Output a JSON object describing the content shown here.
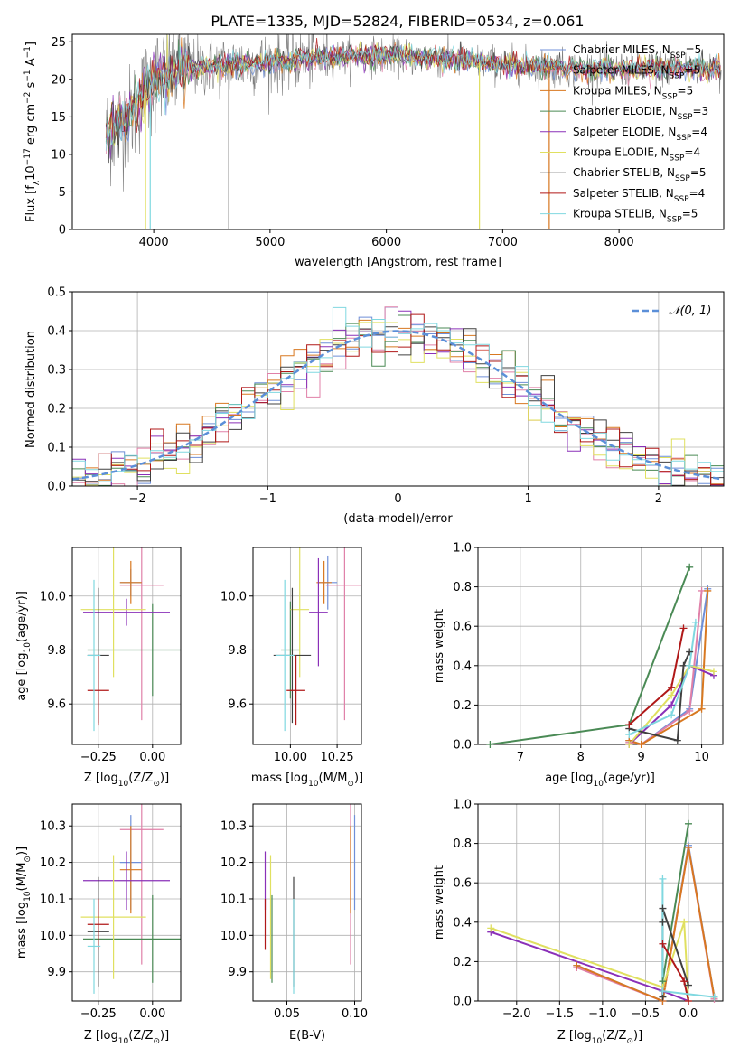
{
  "figure_title": "PLATE=1335, MJD=52824, FIBERID=0534, z=0.061",
  "colors": {
    "Chabrier MILES": "#6f8fd8",
    "Salpeter MILES": "#e080a8",
    "Kroupa MILES": "#d87820",
    "Chabrier ELODIE": "#4a8a55",
    "Salpeter ELODIE": "#8a30b8",
    "Kroupa ELODIE": "#e0e060",
    "Chabrier STELIB": "#404040",
    "Salpeter STELIB": "#b01818",
    "Kroupa STELIB": "#80d8e0",
    "normal_curve": "#5b8fd8",
    "grid": "#b0b0b0",
    "spectrum_gray": "#808080"
  },
  "chart_data": [
    {
      "id": "spectrum",
      "type": "line",
      "title": "PLATE=1335, MJD=52824, FIBERID=0534, z=0.061",
      "xlabel": "wavelength [Angstrom, rest frame]",
      "ylabel_parts": [
        "Flux [f",
        "λ",
        "10",
        "−17",
        " erg cm",
        "−2",
        " s",
        "−1",
        " A",
        "−1",
        "]"
      ],
      "xlim": [
        3300,
        8900
      ],
      "ylim": [
        0,
        26
      ],
      "xticks": [
        4000,
        5000,
        6000,
        7000,
        8000
      ],
      "yticks": [
        0,
        5,
        10,
        15,
        20,
        25
      ],
      "legend_position": "upper right",
      "series": [
        {
          "name": "Chabrier MILES",
          "label_parts": [
            "Chabrier MILES, N",
            "SSP",
            "=5"
          ]
        },
        {
          "name": "Salpeter MILES",
          "label_parts": [
            "Salpeter MILES, N",
            "SSP",
            "=5"
          ]
        },
        {
          "name": "Kroupa MILES",
          "label_parts": [
            "Kroupa MILES, N",
            "SSP",
            "=5"
          ]
        },
        {
          "name": "Chabrier ELODIE",
          "label_parts": [
            "Chabrier ELODIE, N",
            "SSP",
            "=3"
          ]
        },
        {
          "name": "Salpeter ELODIE",
          "label_parts": [
            "Salpeter ELODIE, N",
            "SSP",
            "=4"
          ]
        },
        {
          "name": "Kroupa ELODIE",
          "label_parts": [
            "Kroupa ELODIE, N",
            "SSP",
            "=4"
          ]
        },
        {
          "name": "Chabrier STELIB",
          "label_parts": [
            "Chabrier STELIB, N",
            "SSP",
            "=5"
          ]
        },
        {
          "name": "Salpeter STELIB",
          "label_parts": [
            "Salpeter STELIB, N",
            "SSP",
            "=4"
          ]
        },
        {
          "name": "Kroupa STELIB",
          "label_parts": [
            "Kroupa STELIB, N",
            "SSP",
            "=5"
          ]
        }
      ],
      "continuum_x": [
        3590,
        3800,
        4000,
        4200,
        4500,
        5000,
        5500,
        6000,
        6500,
        7000,
        7500,
        8000,
        8500,
        8900
      ],
      "continuum_y": [
        12.5,
        15.0,
        20.0,
        21.3,
        21.8,
        22.3,
        23.0,
        23.2,
        22.7,
        22.0,
        21.5,
        21.3,
        21.5,
        21.5
      ],
      "spikes": [
        {
          "x": 3930,
          "y": 0
        },
        {
          "x": 3970,
          "y": 0
        },
        {
          "x": 4645,
          "y": 0
        },
        {
          "x": 6800,
          "y": 0
        },
        {
          "x": 7400,
          "y": 0
        }
      ]
    },
    {
      "id": "residuals",
      "type": "step",
      "xlabel": "(data-model)/error",
      "ylabel": "Normed distribution",
      "xlim": [
        -2.5,
        2.5
      ],
      "ylim": [
        0,
        0.5
      ],
      "xticks": [
        -2,
        -1,
        0,
        1,
        2
      ],
      "yticks": [
        0.0,
        0.1,
        0.2,
        0.3,
        0.4,
        0.5
      ],
      "bin_width": 0.1,
      "legend_position": "upper right",
      "curve_legend": "𝒩(0, 1)",
      "curve": "normal(0,1)"
    },
    {
      "id": "age_vs_Z",
      "type": "errorbar",
      "xlabel_parts": [
        "Z [log",
        "10",
        "(Z/Z",
        "⊙",
        ")]"
      ],
      "ylabel_parts": [
        "age  [log",
        "10",
        "(age/yr)]"
      ],
      "xlim": [
        -0.37,
        0.13
      ],
      "ylim": [
        9.45,
        10.18
      ],
      "xticks": [
        -0.25,
        0.0
      ],
      "yticks": [
        9.6,
        9.8,
        10.0
      ],
      "points": [
        {
          "name": "Chabrier MILES",
          "x": -0.1,
          "y": 10.05,
          "xerr": 0.05,
          "yerr": 0.05
        },
        {
          "name": "Salpeter MILES",
          "x": -0.05,
          "y": 10.04,
          "xerr": 0.1,
          "yerr": 0.5
        },
        {
          "name": "Kroupa MILES",
          "x": -0.1,
          "y": 10.05,
          "xerr": 0.05,
          "yerr": 0.08
        },
        {
          "name": "Chabrier ELODIE",
          "x": 0.0,
          "y": 9.8,
          "xerr": 0.3,
          "yerr": 0.17
        },
        {
          "name": "Salpeter ELODIE",
          "x": -0.12,
          "y": 9.94,
          "xerr": 0.2,
          "yerr": 0.05
        },
        {
          "name": "Kroupa ELODIE",
          "x": -0.18,
          "y": 9.95,
          "xerr": 0.15,
          "yerr": 0.25
        },
        {
          "name": "Chabrier STELIB",
          "x": -0.25,
          "y": 9.78,
          "xerr": 0.05,
          "yerr": 0.25
        },
        {
          "name": "Salpeter STELIB",
          "x": -0.25,
          "y": 9.65,
          "xerr": 0.05,
          "yerr": 0.13
        },
        {
          "name": "Kroupa STELIB",
          "x": -0.27,
          "y": 9.78,
          "xerr": 0.03,
          "yerr": 0.28
        }
      ]
    },
    {
      "id": "age_vs_mass",
      "type": "errorbar",
      "xlabel_parts": [
        "mass [log",
        "10",
        "(M/M",
        "⊙",
        ")]"
      ],
      "xlim": [
        9.8,
        10.38
      ],
      "ylim": [
        9.45,
        10.18
      ],
      "xticks": [
        10.0,
        10.25
      ],
      "yticks": [
        9.6,
        9.8,
        10.0
      ],
      "points": [
        {
          "name": "Chabrier MILES",
          "x": 10.2,
          "y": 10.05,
          "xerr": 0.05,
          "yerr": 0.1
        },
        {
          "name": "Salpeter MILES",
          "x": 10.29,
          "y": 10.04,
          "xerr": 0.1,
          "yerr": 0.5
        },
        {
          "name": "Kroupa MILES",
          "x": 10.18,
          "y": 10.05,
          "xerr": 0.04,
          "yerr": 0.08
        },
        {
          "name": "Chabrier ELODIE",
          "x": 10.0,
          "y": 9.8,
          "xerr": 0.05,
          "yerr": 0.18
        },
        {
          "name": "Salpeter ELODIE",
          "x": 10.15,
          "y": 9.94,
          "xerr": 0.05,
          "yerr": 0.2
        },
        {
          "name": "Kroupa ELODIE",
          "x": 10.05,
          "y": 9.95,
          "xerr": 0.05,
          "yerr": 0.25
        },
        {
          "name": "Chabrier STELIB",
          "x": 10.01,
          "y": 9.78,
          "xerr": 0.1,
          "yerr": 0.25
        },
        {
          "name": "Salpeter STELIB",
          "x": 10.03,
          "y": 9.65,
          "xerr": 0.05,
          "yerr": 0.13
        },
        {
          "name": "Kroupa STELIB",
          "x": 9.97,
          "y": 9.78,
          "xerr": 0.05,
          "yerr": 0.28
        }
      ]
    },
    {
      "id": "massweight_vs_age",
      "type": "line",
      "xlabel_parts": [
        "age  [log",
        "10",
        "(age/yr)]"
      ],
      "ylabel": "mass weight",
      "xlim": [
        6.3,
        10.35
      ],
      "ylim": [
        0,
        1.0
      ],
      "xticks": [
        7,
        8,
        9,
        10
      ],
      "yticks": [
        0.0,
        0.2,
        0.4,
        0.6,
        0.8,
        1.0
      ],
      "series": [
        {
          "name": "Chabrier MILES",
          "x": [
            8.8,
            9.0,
            9.8,
            10.1
          ],
          "y": [
            0.02,
            0.0,
            0.18,
            0.79
          ]
        },
        {
          "name": "Salpeter MILES",
          "x": [
            8.8,
            9.0,
            9.8,
            10.0
          ],
          "y": [
            0.01,
            0.0,
            0.17,
            0.78
          ]
        },
        {
          "name": "Kroupa MILES",
          "x": [
            8.8,
            9.0,
            10.0,
            10.1
          ],
          "y": [
            0.02,
            0.0,
            0.18,
            0.78
          ]
        },
        {
          "name": "Chabrier ELODIE",
          "x": [
            6.5,
            8.8,
            9.8
          ],
          "y": [
            0.0,
            0.1,
            0.9
          ]
        },
        {
          "name": "Salpeter ELODIE",
          "x": [
            8.8,
            9.5,
            9.8,
            10.2
          ],
          "y": [
            0.0,
            0.2,
            0.4,
            0.35
          ]
        },
        {
          "name": "Kroupa ELODIE",
          "x": [
            8.8,
            9.5,
            9.8,
            10.2
          ],
          "y": [
            0.0,
            0.25,
            0.4,
            0.37
          ]
        },
        {
          "name": "Chabrier STELIB",
          "x": [
            8.8,
            9.6,
            9.7,
            9.8
          ],
          "y": [
            0.08,
            0.02,
            0.4,
            0.47
          ]
        },
        {
          "name": "Salpeter STELIB",
          "x": [
            8.8,
            9.5,
            9.7
          ],
          "y": [
            0.1,
            0.29,
            0.59
          ]
        },
        {
          "name": "Kroupa STELIB",
          "x": [
            8.8,
            9.5,
            9.8,
            9.9
          ],
          "y": [
            0.05,
            0.15,
            0.4,
            0.62
          ]
        }
      ]
    },
    {
      "id": "mass_vs_Z",
      "type": "errorbar",
      "xlabel_parts": [
        "Z [log",
        "10",
        "(Z/Z",
        "⊙",
        ")]"
      ],
      "ylabel_parts": [
        "mass [log",
        "10",
        "(M/M",
        "⊙",
        ")]"
      ],
      "xlim": [
        -0.37,
        0.13
      ],
      "ylim": [
        9.82,
        10.36
      ],
      "xticks": [
        -0.25,
        0.0
      ],
      "yticks": [
        9.9,
        10.0,
        10.1,
        10.2,
        10.3
      ],
      "points": [
        {
          "name": "Chabrier MILES",
          "x": -0.1,
          "y": 10.2,
          "xerr": 0.05,
          "yerr": 0.13
        },
        {
          "name": "Salpeter MILES",
          "x": -0.05,
          "y": 10.29,
          "xerr": 0.1,
          "yerr": 0.37
        },
        {
          "name": "Kroupa MILES",
          "x": -0.1,
          "y": 10.18,
          "xerr": 0.05,
          "yerr": 0.12
        },
        {
          "name": "Chabrier ELODIE",
          "x": 0.0,
          "y": 9.99,
          "xerr": 0.32,
          "yerr": 0.12
        },
        {
          "name": "Salpeter ELODIE",
          "x": -0.12,
          "y": 10.15,
          "xerr": 0.2,
          "yerr": 0.08
        },
        {
          "name": "Kroupa ELODIE",
          "x": -0.18,
          "y": 10.05,
          "xerr": 0.15,
          "yerr": 0.17
        },
        {
          "name": "Chabrier STELIB",
          "x": -0.25,
          "y": 10.01,
          "xerr": 0.05,
          "yerr": 0.15
        },
        {
          "name": "Salpeter STELIB",
          "x": -0.25,
          "y": 10.03,
          "xerr": 0.05,
          "yerr": 0.07
        },
        {
          "name": "Kroupa STELIB",
          "x": -0.27,
          "y": 9.97,
          "xerr": 0.03,
          "yerr": 0.13
        }
      ]
    },
    {
      "id": "mass_vs_ebv",
      "type": "errorbar",
      "xlabel": "E(B-V)",
      "xlim": [
        0.025,
        0.105
      ],
      "ylim": [
        9.82,
        10.36
      ],
      "xticks": [
        0.05,
        0.1
      ],
      "yticks": [
        9.9,
        10.0,
        10.1,
        10.2,
        10.3
      ],
      "points": [
        {
          "name": "Chabrier MILES",
          "x": 0.1,
          "y": 10.2,
          "xerr": 0,
          "yerr": 0.13
        },
        {
          "name": "Salpeter MILES",
          "x": 0.097,
          "y": 10.29,
          "xerr": 0,
          "yerr": 0.37
        },
        {
          "name": "Kroupa MILES",
          "x": 0.097,
          "y": 10.18,
          "xerr": 0,
          "yerr": 0.12
        },
        {
          "name": "Chabrier ELODIE",
          "x": 0.039,
          "y": 9.99,
          "xerr": 0,
          "yerr": 0.12
        },
        {
          "name": "Salpeter ELODIE",
          "x": 0.034,
          "y": 10.15,
          "xerr": 0,
          "yerr": 0.08
        },
        {
          "name": "Kroupa ELODIE",
          "x": 0.038,
          "y": 10.05,
          "xerr": 0,
          "yerr": 0.17
        },
        {
          "name": "Chabrier STELIB",
          "x": 0.055,
          "y": 10.01,
          "xerr": 0,
          "yerr": 0.15
        },
        {
          "name": "Salpeter STELIB",
          "x": 0.034,
          "y": 10.03,
          "xerr": 0,
          "yerr": 0.07
        },
        {
          "name": "Kroupa STELIB",
          "x": 0.055,
          "y": 9.97,
          "xerr": 0,
          "yerr": 0.13
        }
      ]
    },
    {
      "id": "massweight_vs_Z",
      "type": "line",
      "xlabel_parts": [
        "Z [log",
        "10",
        "(Z/Z",
        "⊙",
        ")]"
      ],
      "ylabel": "mass weight",
      "xlim": [
        -2.45,
        0.4
      ],
      "ylim": [
        0,
        1.0
      ],
      "xticks": [
        -2.0,
        -1.5,
        -1.0,
        -0.5,
        0.0
      ],
      "yticks": [
        0.0,
        0.2,
        0.4,
        0.6,
        0.8,
        1.0
      ],
      "series": [
        {
          "name": "Chabrier MILES",
          "x": [
            -1.3,
            -0.3,
            0.0,
            0.3
          ],
          "y": [
            0.18,
            0.0,
            0.79,
            0.02
          ]
        },
        {
          "name": "Salpeter MILES",
          "x": [
            -1.3,
            -0.3,
            0.0,
            0.3
          ],
          "y": [
            0.17,
            0.0,
            0.78,
            0.01
          ]
        },
        {
          "name": "Kroupa MILES",
          "x": [
            -1.3,
            -0.3,
            0.0,
            0.3
          ],
          "y": [
            0.18,
            0.0,
            0.78,
            0.02
          ]
        },
        {
          "name": "Chabrier ELODIE",
          "x": [
            -0.3,
            0.0
          ],
          "y": [
            0.1,
            0.9
          ]
        },
        {
          "name": "Salpeter ELODIE",
          "x": [
            -2.3,
            -0.3,
            0.0
          ],
          "y": [
            0.35,
            0.05,
            0.0
          ]
        },
        {
          "name": "Kroupa ELODIE",
          "x": [
            -2.3,
            -0.3,
            -0.05,
            0.0
          ],
          "y": [
            0.37,
            0.07,
            0.4,
            0.0
          ]
        },
        {
          "name": "Chabrier STELIB",
          "x": [
            -0.3,
            -0.3,
            -0.3,
            0.0
          ],
          "y": [
            0.02,
            0.4,
            0.47,
            0.08
          ]
        },
        {
          "name": "Salpeter STELIB",
          "x": [
            -0.3,
            -0.05,
            0.0
          ],
          "y": [
            0.29,
            0.1,
            0.0
          ]
        },
        {
          "name": "Kroupa STELIB",
          "x": [
            -0.3,
            -0.3,
            0.3
          ],
          "y": [
            0.62,
            0.05,
            0.02
          ]
        }
      ]
    }
  ]
}
